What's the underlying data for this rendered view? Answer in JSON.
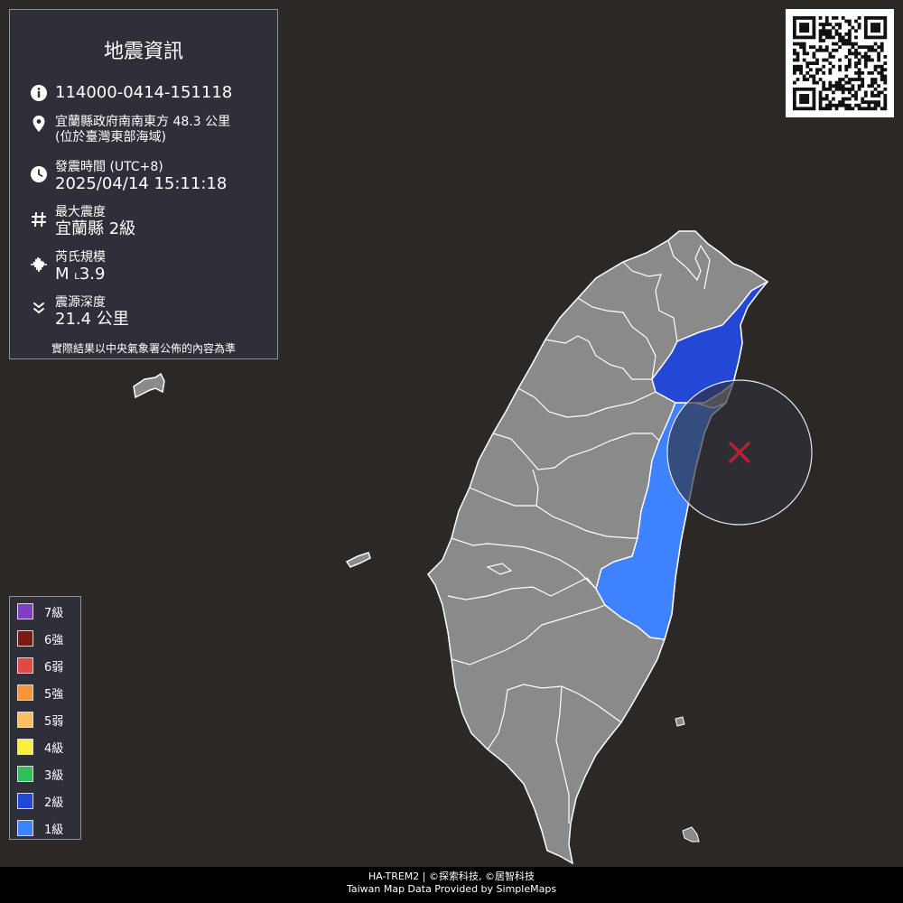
{
  "info": {
    "title": "地震資訊",
    "report_id": "114000-0414-151118",
    "location_line1": "宜蘭縣政府南南東方 48.3 公里",
    "location_line2": "(位於臺灣東部海域)",
    "time_label": "發震時間 (UTC+8)",
    "time_value": "2025/04/14 15:11:18",
    "max_intensity_label": "最大震度",
    "max_intensity_value": "宜蘭縣 2級",
    "magnitude_label": "芮氏規模",
    "magnitude_prefix": "M",
    "magnitude_sub": "L",
    "magnitude_value": "3.9",
    "depth_label": "震源深度",
    "depth_value": "21.4 公里",
    "disclaimer": "實際結果以中央氣象署公佈的內容為準"
  },
  "legend": [
    {
      "label": "7級",
      "color": "#7f3fbf"
    },
    {
      "label": "6強",
      "color": "#7a1a10"
    },
    {
      "label": "6弱",
      "color": "#e34848"
    },
    {
      "label": "5強",
      "color": "#f5963a"
    },
    {
      "label": "5弱",
      "color": "#fcc060"
    },
    {
      "label": "4級",
      "color": "#faf03c"
    },
    {
      "label": "3級",
      "color": "#2fbf5a"
    },
    {
      "label": "2級",
      "color": "#2448d6"
    },
    {
      "label": "1級",
      "color": "#3f82ff"
    }
  ],
  "map": {
    "intensity_regions": [
      {
        "region": "宜蘭縣",
        "intensity": "2級",
        "color": "#2448d6"
      },
      {
        "region": "花蓮縣",
        "intensity": "1級",
        "color": "#3f82ff"
      }
    ],
    "land_color": "#8a8a8a",
    "sea_color": "#2b2826",
    "epicenter_color": "#b02433"
  },
  "footer": {
    "line1": "HA-TREM2 | ©探索科技, ©居智科技",
    "line2": "Taiwan Map Data Provided by SimpleMaps"
  }
}
